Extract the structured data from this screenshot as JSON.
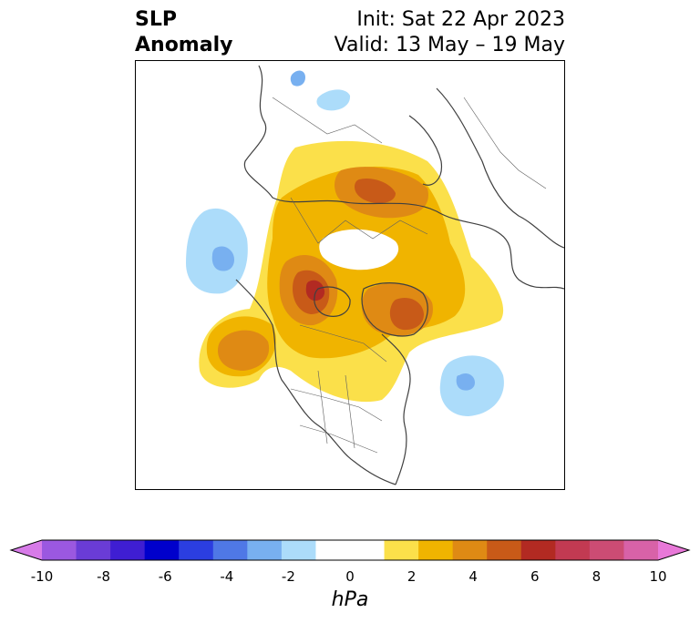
{
  "title": {
    "left_line1": "SLP",
    "left_line2": "Anomaly",
    "right_line1": "Init: Sat 22 Apr 2023",
    "right_line2": "Valid: 13 May – 19 May"
  },
  "colorbar": {
    "unit": "hPa",
    "min": -10,
    "max": 10,
    "tick_labels": [
      "-10",
      "-8",
      "-6",
      "-4",
      "-2",
      "0",
      "2",
      "4",
      "6",
      "8",
      "10"
    ],
    "colors": [
      "#d77be8",
      "#9b58e0",
      "#6a3cd6",
      "#3f1ed2",
      "#0000cc",
      "#2b3ee0",
      "#4f78e6",
      "#78b0f0",
      "#acdcfa",
      "#ffffff",
      "#ffffff",
      "#fbe04a",
      "#f0b400",
      "#df8a14",
      "#c85a18",
      "#b22a22",
      "#c23a52",
      "#cc4c74",
      "#d862a8",
      "#e878d8"
    ]
  },
  "map": {
    "projection": "polar-stereographic north",
    "fill_colors": {
      "pos1": "#fbe04a",
      "pos2": "#f0b400",
      "pos3": "#df8a14",
      "pos4": "#c85a18",
      "pos5": "#b22a22",
      "neg1": "#acdcfa",
      "neg2": "#78b0f0"
    }
  }
}
